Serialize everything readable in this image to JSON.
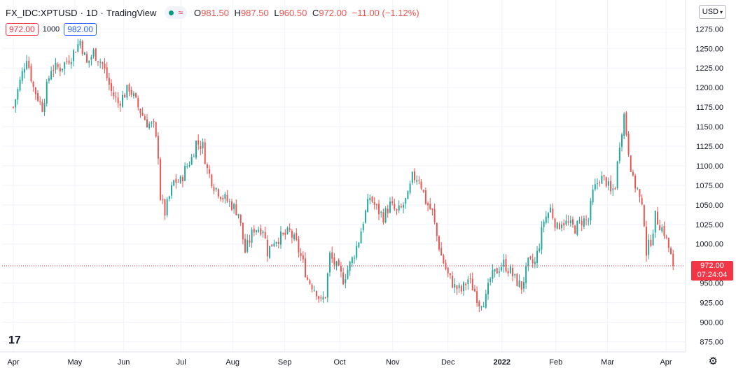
{
  "header": {
    "symbol": "FX_IDC:XPTUSD",
    "interval": "1D",
    "source": "TradingView",
    "open": "981.50",
    "high": "987.50",
    "low": "960.50",
    "close": "972.00",
    "change": "−11.00 (−1.12%)",
    "dot": "·",
    "o_label": "O",
    "h_label": "H",
    "l_label": "L",
    "c_label": "C"
  },
  "row2": {
    "sell": "972.00",
    "spread": "1000",
    "buy": "982.00"
  },
  "currency_button": "USD",
  "price_tag": {
    "price": "972.00",
    "countdown": "07:24:04"
  },
  "logo_text": "17",
  "colors": {
    "up": "#26a69a",
    "down": "#ef5350",
    "grid": "#f0f3fa",
    "tag": "#f23645"
  },
  "chart_data": {
    "type": "candlestick",
    "ylim": [
      862,
      1312
    ],
    "y_ticks": [
      875,
      900,
      925,
      950,
      1000,
      1025,
      1050,
      1075,
      1100,
      1125,
      1150,
      1175,
      1200,
      1225,
      1250,
      1275
    ],
    "y_tick_labels": [
      "875.00",
      "900.00",
      "925.00",
      "950.00",
      "1000.00",
      "1025.00",
      "1050.00",
      "1075.00",
      "1100.00",
      "1125.00",
      "1150.00",
      "1175.00",
      "1200.00",
      "1225.00",
      "1250.00",
      "1275.00"
    ],
    "x_labels": [
      {
        "label": "Apr",
        "t": 0.0
      },
      {
        "label": "May",
        "t": 27.6
      },
      {
        "label": "Jun",
        "t": 49.5
      },
      {
        "label": "Jul",
        "t": 75.3
      },
      {
        "label": "Aug",
        "t": 98.4
      },
      {
        "label": "Sep",
        "t": 121.8
      },
      {
        "label": "Oct",
        "t": 146.4
      },
      {
        "label": "Nov",
        "t": 170.2
      },
      {
        "label": "Dec",
        "t": 195.0
      },
      {
        "label": "2022",
        "t": 219.2
      },
      {
        "label": "Feb",
        "t": 243.4
      },
      {
        "label": "Mar",
        "t": 266.6
      },
      {
        "label": "Apr",
        "t": 292.8
      }
    ],
    "last_price": 972.0,
    "waypoints": [
      [
        0,
        1175
      ],
      [
        6,
        1240
      ],
      [
        9,
        1200
      ],
      [
        13,
        1175
      ],
      [
        17,
        1225
      ],
      [
        21,
        1225
      ],
      [
        26,
        1240
      ],
      [
        30,
        1260
      ],
      [
        33,
        1230
      ],
      [
        36,
        1245
      ],
      [
        40,
        1230
      ],
      [
        44,
        1195
      ],
      [
        47,
        1180
      ],
      [
        52,
        1200
      ],
      [
        56,
        1175
      ],
      [
        60,
        1155
      ],
      [
        63,
        1150
      ],
      [
        65,
        1115
      ],
      [
        66,
        1060
      ],
      [
        68,
        1040
      ],
      [
        72,
        1080
      ],
      [
        75,
        1080
      ],
      [
        77,
        1095
      ],
      [
        80,
        1110
      ],
      [
        82,
        1130
      ],
      [
        85,
        1125
      ],
      [
        87,
        1095
      ],
      [
        90,
        1075
      ],
      [
        94,
        1060
      ],
      [
        98,
        1050
      ],
      [
        101,
        1040
      ],
      [
        104,
        990
      ],
      [
        106,
        1005
      ],
      [
        108,
        1020
      ],
      [
        112,
        1020
      ],
      [
        114,
        990
      ],
      [
        117,
        1005
      ],
      [
        121,
        1010
      ],
      [
        124,
        1015
      ],
      [
        127,
        1000
      ],
      [
        130,
        975
      ],
      [
        132,
        955
      ],
      [
        136,
        940
      ],
      [
        138,
        925
      ],
      [
        140,
        935
      ],
      [
        142,
        985
      ],
      [
        145,
        970
      ],
      [
        148,
        955
      ],
      [
        152,
        980
      ],
      [
        155,
        1005
      ],
      [
        157,
        1030
      ],
      [
        160,
        1060
      ],
      [
        163,
        1045
      ],
      [
        166,
        1035
      ],
      [
        169,
        1050
      ],
      [
        172,
        1040
      ],
      [
        174,
        1045
      ],
      [
        177,
        1060
      ],
      [
        179,
        1085
      ],
      [
        182,
        1085
      ],
      [
        185,
        1055
      ],
      [
        188,
        1040
      ],
      [
        190,
        1010
      ],
      [
        192,
        985
      ],
      [
        195,
        960
      ],
      [
        198,
        945
      ],
      [
        201,
        940
      ],
      [
        204,
        955
      ],
      [
        207,
        940
      ],
      [
        209,
        925
      ],
      [
        212,
        930
      ],
      [
        214,
        955
      ],
      [
        218,
        970
      ],
      [
        220,
        975
      ],
      [
        223,
        965
      ],
      [
        225,
        955
      ],
      [
        228,
        945
      ],
      [
        231,
        975
      ],
      [
        234,
        975
      ],
      [
        236,
        1000
      ],
      [
        238,
        1030
      ],
      [
        241,
        1045
      ],
      [
        244,
        1020
      ],
      [
        246,
        1030
      ],
      [
        249,
        1025
      ],
      [
        252,
        1020
      ],
      [
        255,
        1030
      ],
      [
        258,
        1030
      ],
      [
        260,
        1065
      ],
      [
        263,
        1085
      ],
      [
        266,
        1080
      ],
      [
        268,
        1065
      ],
      [
        270,
        1075
      ],
      [
        272,
        1130
      ],
      [
        274,
        1165
      ],
      [
        276,
        1120
      ],
      [
        278,
        1080
      ],
      [
        280,
        1070
      ],
      [
        283,
        1030
      ],
      [
        284,
        990
      ],
      [
        286,
        1005
      ],
      [
        288,
        1035
      ],
      [
        290,
        1025
      ],
      [
        292,
        1015
      ],
      [
        294,
        995
      ],
      [
        296,
        972
      ]
    ]
  }
}
